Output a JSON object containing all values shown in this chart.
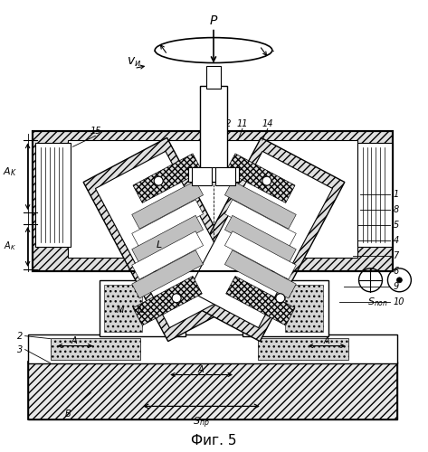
{
  "bg": "#ffffff",
  "fig_title": "Фиг. 5",
  "black": "#000000"
}
